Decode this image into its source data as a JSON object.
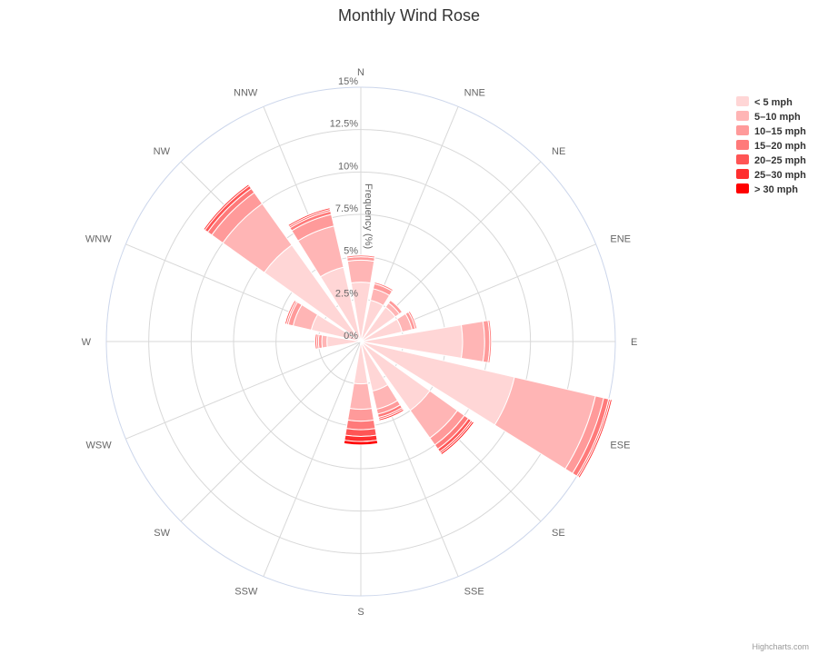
{
  "chart_data": {
    "type": "wind-rose",
    "title": "Monthly Wind Rose",
    "radial_axis": {
      "title": "Frequency (%)",
      "range": [
        0,
        15
      ],
      "ticks": [
        "0%",
        "2.5%",
        "5%",
        "7.5%",
        "10%",
        "12.5%",
        "15%"
      ],
      "tick_values": [
        0,
        2.5,
        5,
        7.5,
        10,
        12.5,
        15
      ]
    },
    "directions": [
      "N",
      "NNE",
      "NE",
      "ENE",
      "E",
      "ESE",
      "SE",
      "SSE",
      "S",
      "SSW",
      "SW",
      "WSW",
      "W",
      "WNW",
      "NW",
      "NNW"
    ],
    "stacked": true,
    "series": [
      {
        "name": "< 5 mph",
        "color": "#ffd6d6",
        "values": [
          3.5,
          2.5,
          2.5,
          2.5,
          6.0,
          9.3,
          5.0,
          3.0,
          2.5,
          0,
          0,
          0,
          2.0,
          3.0,
          7.0,
          4.5
        ]
      },
      {
        "name": "5–10 mph",
        "color": "#ffb5b5",
        "values": [
          1.3,
          0.7,
          0.3,
          0.6,
          1.3,
          4.9,
          2.0,
          1.1,
          1.5,
          0,
          0,
          0,
          0.3,
          1.1,
          3.0,
          2.5
        ]
      },
      {
        "name": "10–15 mph",
        "color": "#ff9a9a",
        "values": [
          0.2,
          0.3,
          0.2,
          0.2,
          0.3,
          0.5,
          0.5,
          0.3,
          0.7,
          0,
          0,
          0,
          0.2,
          0.3,
          0.8,
          0.7
        ]
      },
      {
        "name": "15–20 mph",
        "color": "#ff7a7a",
        "values": [
          0.1,
          0.1,
          0.0,
          0.1,
          0.1,
          0.3,
          0.3,
          0.2,
          0.5,
          0,
          0,
          0,
          0.1,
          0.1,
          0.3,
          0.2
        ]
      },
      {
        "name": "20–25 mph",
        "color": "#ff5555",
        "values": [
          0.0,
          0.0,
          0.0,
          0.0,
          0.0,
          0.1,
          0.2,
          0.1,
          0.4,
          0,
          0,
          0,
          0.1,
          0.1,
          0.2,
          0.1
        ]
      },
      {
        "name": "25–30 mph",
        "color": "#ff2f2f",
        "values": [
          0.0,
          0.0,
          0.0,
          0.0,
          0.0,
          0.1,
          0.1,
          0.1,
          0.3,
          0,
          0,
          0,
          0.0,
          0.0,
          0.1,
          0.1
        ]
      },
      {
        "name": "> 30 mph",
        "color": "#ff0000",
        "values": [
          0.0,
          0.0,
          0.0,
          0.0,
          0.0,
          0.0,
          0.1,
          0.0,
          0.2,
          0,
          0,
          0,
          0.0,
          0.0,
          0.0,
          0.0
        ]
      }
    ],
    "legend_position": "top-right",
    "grid": true
  },
  "credits": "Highcharts.com",
  "colors": {
    "grid": "#d8d8d8",
    "outer_ring": "#ccd6eb",
    "text": "#666666"
  }
}
